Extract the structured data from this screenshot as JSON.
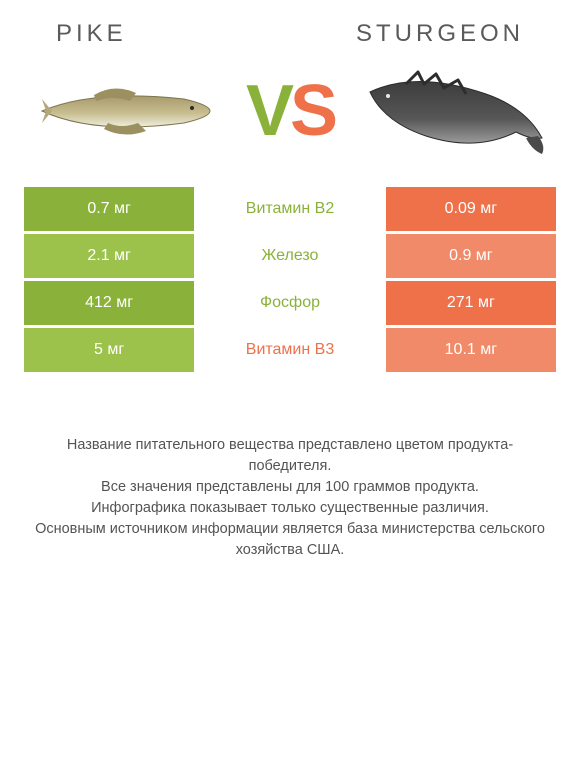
{
  "colors": {
    "left_bg_dark": "#8ab23a",
    "left_bg_light": "#9cc24c",
    "right_bg_dark": "#ee714a",
    "right_bg_light": "#f08a68",
    "mid_text_left": "#8ab23a",
    "mid_text_right": "#ee714a",
    "heading_text": "#5a5a5a"
  },
  "header": {
    "left_name": "PIKE",
    "right_name": "STURGEON"
  },
  "vs": {
    "v": "V",
    "s": "S"
  },
  "rows": [
    {
      "left": "0.7 мг",
      "mid": "Витамин B2",
      "right": "0.09 мг",
      "winner": "left",
      "shade": "dark"
    },
    {
      "left": "2.1 мг",
      "mid": "Железо",
      "right": "0.9 мг",
      "winner": "left",
      "shade": "light"
    },
    {
      "left": "412 мг",
      "mid": "Фосфор",
      "right": "271 мг",
      "winner": "left",
      "shade": "dark"
    },
    {
      "left": "5 мг",
      "mid": "Витамин B3",
      "right": "10.1 мг",
      "winner": "right",
      "shade": "light"
    }
  ],
  "notes": {
    "l1": "Название питательного вещества представлено цветом продукта-победителя.",
    "l2": "Все значения представлены для 100 граммов продукта.",
    "l3": "Инфографика показывает только существенные различия.",
    "l4": "Основным источником информации является база министерства сельского хозяйства США."
  }
}
